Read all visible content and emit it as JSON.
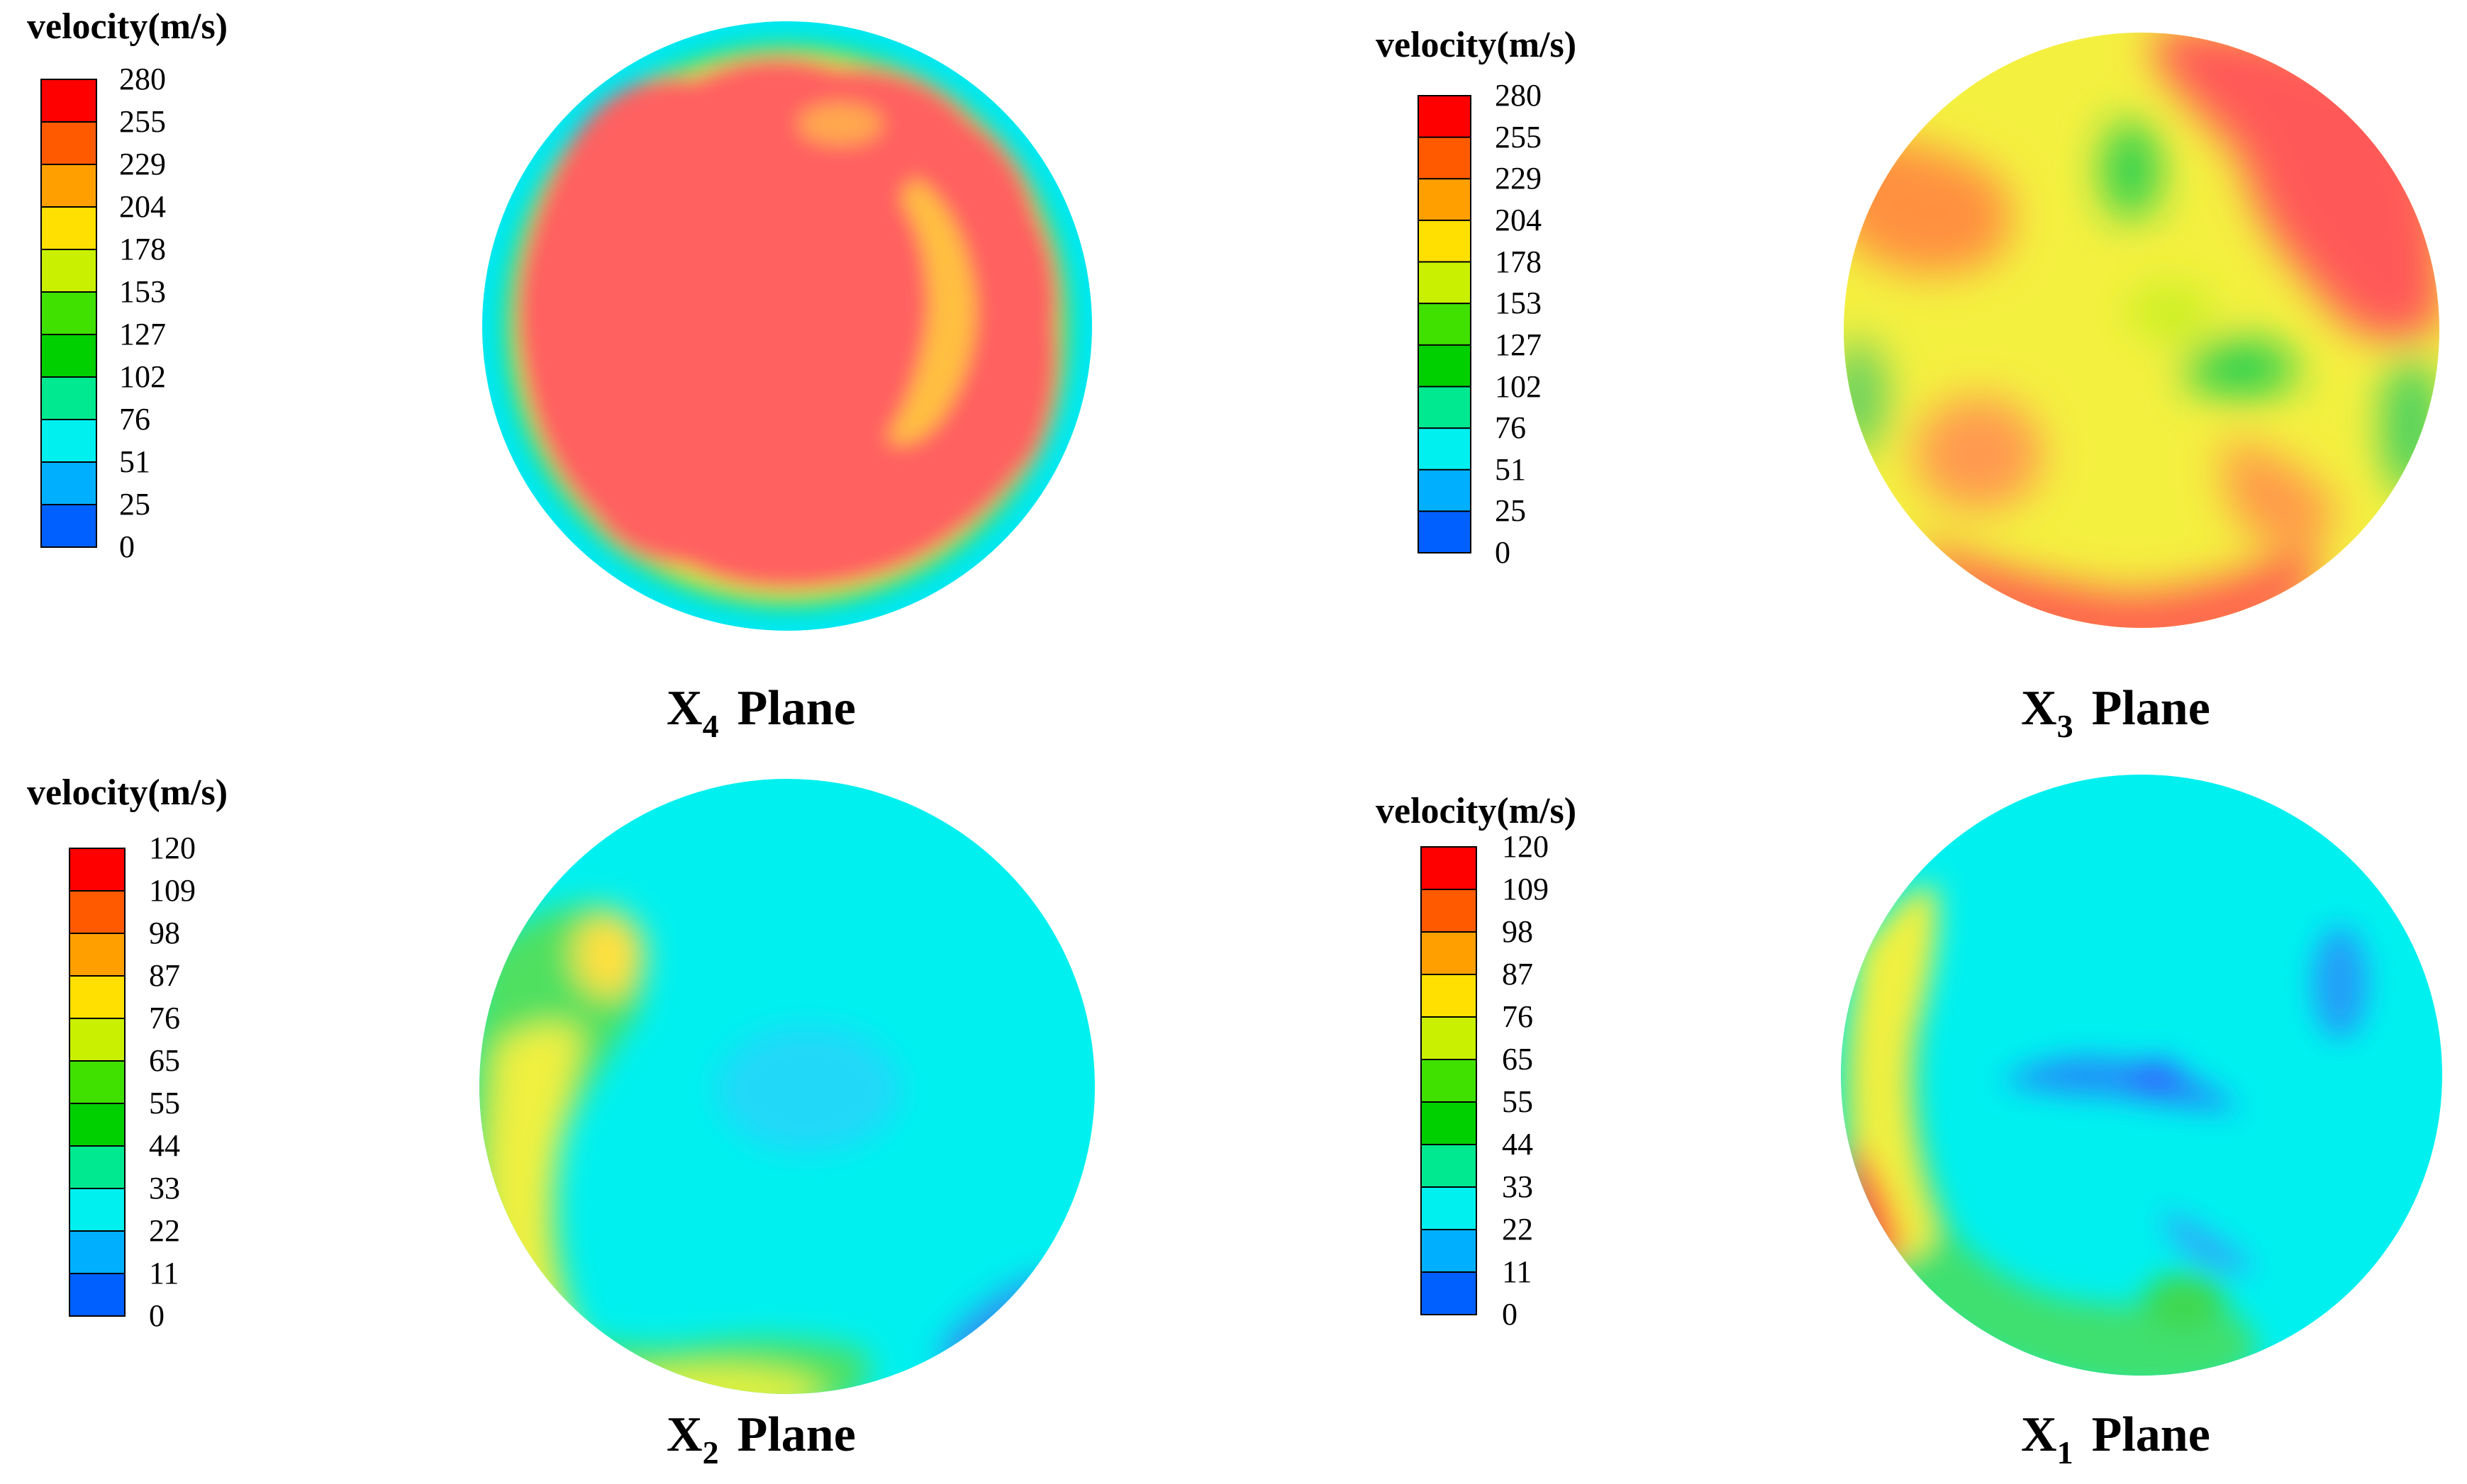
{
  "chart_data": [
    {
      "type": "heatmap",
      "plane_label": {
        "base": "X",
        "index": "4",
        "rest": "Plane"
      },
      "colorbar": {
        "title": "velocity(m/s)",
        "ticks": [
          "280",
          "255",
          "229",
          "204",
          "178",
          "153",
          "127",
          "102",
          "76",
          "51",
          "25",
          "0"
        ],
        "range": [
          0,
          280
        ]
      }
    },
    {
      "type": "heatmap",
      "plane_label": {
        "base": "X",
        "index": "3",
        "rest": "Plane"
      },
      "colorbar": {
        "title": "velocity(m/s)",
        "ticks": [
          "280",
          "255",
          "229",
          "204",
          "178",
          "153",
          "127",
          "102",
          "76",
          "51",
          "25",
          "0"
        ],
        "range": [
          0,
          280
        ]
      }
    },
    {
      "type": "heatmap",
      "plane_label": {
        "base": "X",
        "index": "2",
        "rest": "Plane"
      },
      "colorbar": {
        "title": "velocity(m/s)",
        "ticks": [
          "120",
          "109",
          "98",
          "87",
          "76",
          "65",
          "55",
          "44",
          "33",
          "22",
          "11",
          "0"
        ],
        "range": [
          0,
          120
        ]
      }
    },
    {
      "type": "heatmap",
      "plane_label": {
        "base": "X",
        "index": "1",
        "rest": "Plane"
      },
      "colorbar": {
        "title": "velocity(m/s)",
        "ticks": [
          "120",
          "109",
          "98",
          "87",
          "76",
          "65",
          "55",
          "44",
          "33",
          "22",
          "11",
          "0"
        ],
        "range": [
          0,
          120
        ]
      }
    }
  ],
  "colormap": [
    "#ff0000",
    "#ff5a00",
    "#ffa000",
    "#ffe000",
    "#c8f000",
    "#40e000",
    "#00d000",
    "#00e890",
    "#00f0f0",
    "#00b0ff",
    "#0060ff",
    "#0000ff"
  ]
}
